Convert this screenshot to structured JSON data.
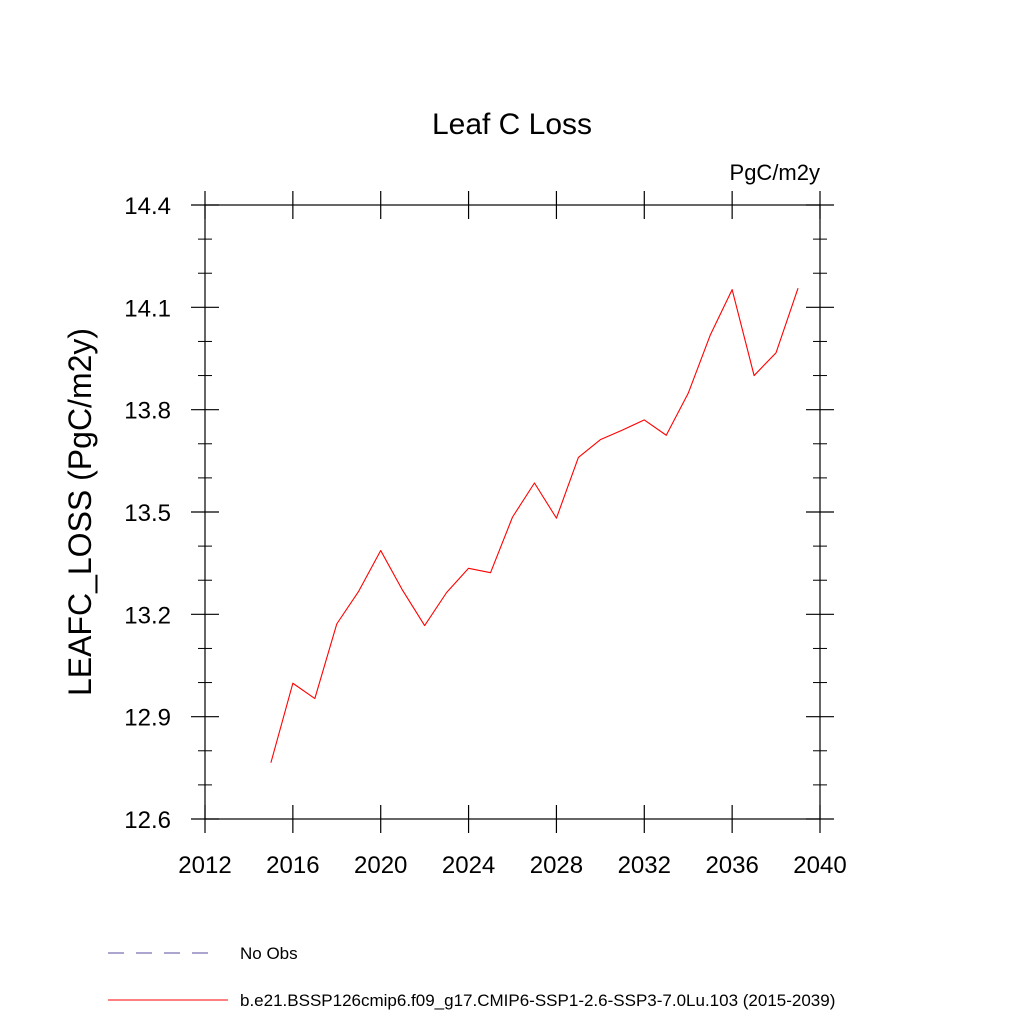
{
  "chart_data": {
    "type": "line",
    "title": "Leaf C Loss",
    "units_label": "PgC/m2y",
    "ylabel": "LEAFC_LOSS  (PgC/m2y)",
    "xlabel": "",
    "xlim": [
      2012,
      2040
    ],
    "ylim": [
      12.6,
      14.4
    ],
    "x_ticks": [
      2012,
      2016,
      2020,
      2024,
      2028,
      2032,
      2036,
      2040
    ],
    "y_ticks": [
      12.6,
      12.9,
      13.2,
      13.5,
      13.8,
      14.1,
      14.4
    ],
    "x_tick_labels": [
      "2012",
      "2016",
      "2020",
      "2024",
      "2028",
      "2032",
      "2036",
      "2040"
    ],
    "y_tick_labels": [
      "12.6",
      "12.9",
      "13.2",
      "13.5",
      "13.8",
      "14.1",
      "14.4"
    ],
    "grid": false,
    "legend_position": "bottom-left",
    "series": [
      {
        "name": "b.e21.BSSP126cmip6.f09_g17.CMIP6-SSP1-2.6-SSP3-7.0Lu.103 (2015-2039)",
        "color": "#ff0000",
        "x": [
          2015,
          2016,
          2017,
          2018,
          2019,
          2020,
          2021,
          2022,
          2023,
          2024,
          2025,
          2026,
          2027,
          2028,
          2029,
          2030,
          2031,
          2032,
          2033,
          2034,
          2035,
          2036,
          2037,
          2038,
          2039
        ],
        "values": [
          12.765,
          12.998,
          12.953,
          13.172,
          13.268,
          13.387,
          13.27,
          13.167,
          13.264,
          13.335,
          13.322,
          13.485,
          13.585,
          13.482,
          13.66,
          13.712,
          13.74,
          13.77,
          13.725,
          13.848,
          14.018,
          14.152,
          13.9,
          13.967,
          14.156
        ]
      }
    ],
    "legend": [
      {
        "label": "No Obs",
        "color": "#5a4ba0",
        "style": "dashed"
      },
      {
        "label": "b.e21.BSSP126cmip6.f09_g17.CMIP6-SSP1-2.6-SSP3-7.0Lu.103 (2015-2039)",
        "color": "#ff0000",
        "style": "solid"
      }
    ]
  }
}
